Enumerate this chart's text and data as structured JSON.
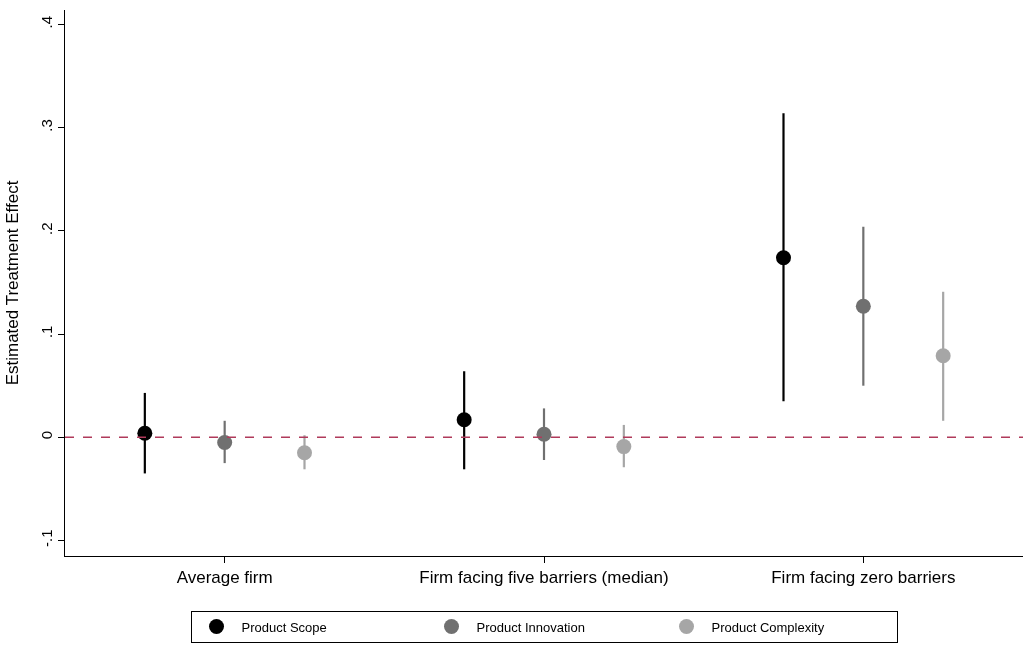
{
  "chart_data": {
    "type": "scatter",
    "ylabel": "Estimated Treatment Effect",
    "categories": [
      "Average firm",
      "Firm facing five barriers (median)",
      "Firm facing zero barriers"
    ],
    "series": [
      {
        "name": "Product Scope",
        "color": "#000000",
        "values": [
          0.004,
          0.017,
          0.174
        ],
        "errors": [
          [
            -0.035,
            0.043
          ],
          [
            -0.031,
            0.064
          ],
          [
            0.035,
            0.314
          ]
        ]
      },
      {
        "name": "Product Innovation",
        "color": "#707070",
        "values": [
          -0.005,
          0.003,
          0.127
        ],
        "errors": [
          [
            -0.025,
            0.016
          ],
          [
            -0.022,
            0.028
          ],
          [
            0.05,
            0.204
          ]
        ]
      },
      {
        "name": "Product Complexity",
        "color": "#a6a6a6",
        "values": [
          -0.015,
          -0.009,
          0.079
        ],
        "errors": [
          [
            -0.031,
            0.002
          ],
          [
            -0.029,
            0.012
          ],
          [
            0.016,
            0.141
          ]
        ]
      }
    ],
    "ylim": [
      -0.115,
      0.414
    ],
    "yticks": [
      {
        "value": -0.1,
        "label": "-.1"
      },
      {
        "value": 0,
        "label": "0"
      },
      {
        "value": 0.1,
        "label": ".1"
      },
      {
        "value": 0.2,
        "label": ".2"
      },
      {
        "value": 0.3,
        "label": ".3"
      },
      {
        "value": 0.4,
        "label": ".4"
      }
    ],
    "ref_lines": [
      {
        "axis": "y",
        "value": 0,
        "color": "#b03a5b",
        "line_style": "dashed"
      }
    ],
    "marker": "circle",
    "legend": "bottom"
  }
}
